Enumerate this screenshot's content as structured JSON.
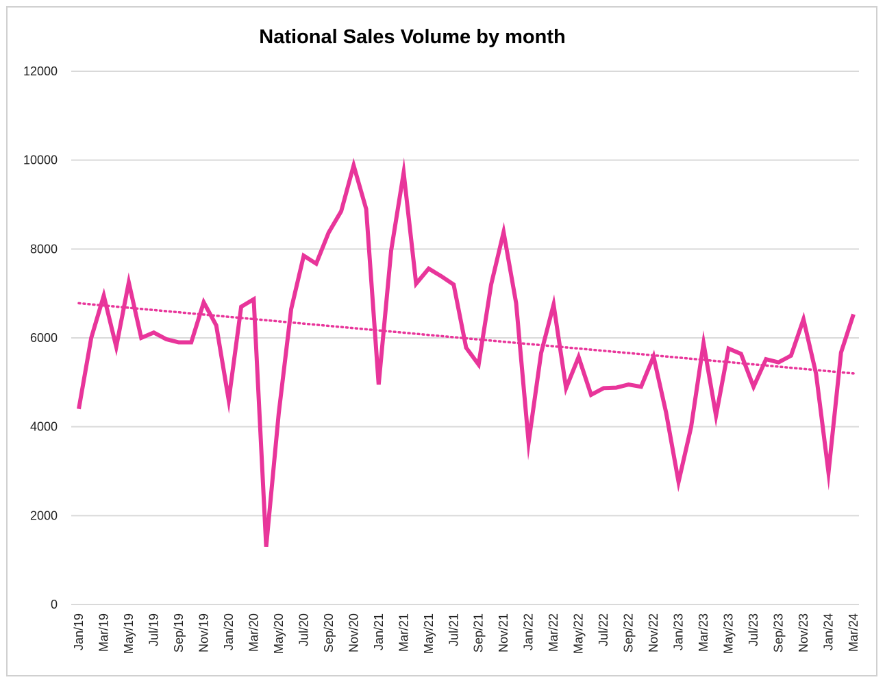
{
  "chart_data": {
    "type": "line",
    "title": "National Sales Volume by month",
    "xlabel": "",
    "ylabel": "",
    "ylim": [
      0,
      12000
    ],
    "yticks": [
      0,
      2000,
      4000,
      6000,
      8000,
      10000,
      12000
    ],
    "grid": true,
    "legend": "none",
    "x": [
      "Jan/19",
      "Feb/19",
      "Mar/19",
      "Apr/19",
      "May/19",
      "Jun/19",
      "Jul/19",
      "Aug/19",
      "Sep/19",
      "Oct/19",
      "Nov/19",
      "Dec/19",
      "Jan/20",
      "Feb/20",
      "Mar/20",
      "Apr/20",
      "May/20",
      "Jun/20",
      "Jul/20",
      "Aug/20",
      "Sep/20",
      "Oct/20",
      "Nov/20",
      "Dec/20",
      "Jan/21",
      "Feb/21",
      "Mar/21",
      "Apr/21",
      "May/21",
      "Jun/21",
      "Jul/21",
      "Aug/21",
      "Sep/21",
      "Oct/21",
      "Nov/21",
      "Dec/21",
      "Jan/22",
      "Feb/22",
      "Mar/22",
      "Apr/22",
      "May/22",
      "Jun/22",
      "Jul/22",
      "Aug/22",
      "Sep/22",
      "Oct/22",
      "Nov/22",
      "Dec/22",
      "Jan/23",
      "Feb/23",
      "Mar/23",
      "Apr/23",
      "May/23",
      "Jun/23",
      "Jul/23",
      "Aug/23",
      "Sep/23",
      "Oct/23",
      "Nov/23",
      "Dec/23",
      "Jan/24",
      "Feb/24",
      "Mar/24"
    ],
    "xtick_labels": [
      "Jan/19",
      "Mar/19",
      "May/19",
      "Jul/19",
      "Sep/19",
      "Nov/19",
      "Jan/20",
      "Mar/20",
      "May/20",
      "Jul/20",
      "Sep/20",
      "Nov/20",
      "Jan/21",
      "Mar/21",
      "May/21",
      "Jul/21",
      "Sep/21",
      "Nov/21",
      "Jan/22",
      "Mar/22",
      "May/22",
      "Jul/22",
      "Sep/22",
      "Nov/22",
      "Jan/23",
      "Mar/23",
      "May/23",
      "Jul/23",
      "Sep/23",
      "Nov/23",
      "Jan/24",
      "Mar/24"
    ],
    "series": [
      {
        "color": "#e8359a",
        "values": [
          4400,
          6000,
          6950,
          5800,
          7250,
          6000,
          6120,
          5970,
          5900,
          5900,
          6800,
          6280,
          4600,
          6700,
          6870,
          1300,
          4300,
          6650,
          7850,
          7670,
          8370,
          8850,
          9880,
          8900,
          4950,
          7960,
          9720,
          7220,
          7560,
          7390,
          7200,
          5780,
          5400,
          7200,
          8380,
          6780,
          3650,
          5660,
          6750,
          4870,
          5570,
          4720,
          4870,
          4880,
          4950,
          4900,
          5580,
          4320,
          2760,
          3990,
          5880,
          4250,
          5760,
          5640,
          4900,
          5520,
          5450,
          5600,
          6420,
          5200,
          2970,
          5670,
          6530
        ]
      }
    ],
    "trendline": {
      "type": "linear",
      "style": "dotted",
      "color": "#e8359a",
      "start": 6780,
      "end": 5200
    },
    "colors": {
      "line": "#e8359a",
      "grid": "#d9d9d9",
      "frame": "#d0d0d0"
    }
  }
}
